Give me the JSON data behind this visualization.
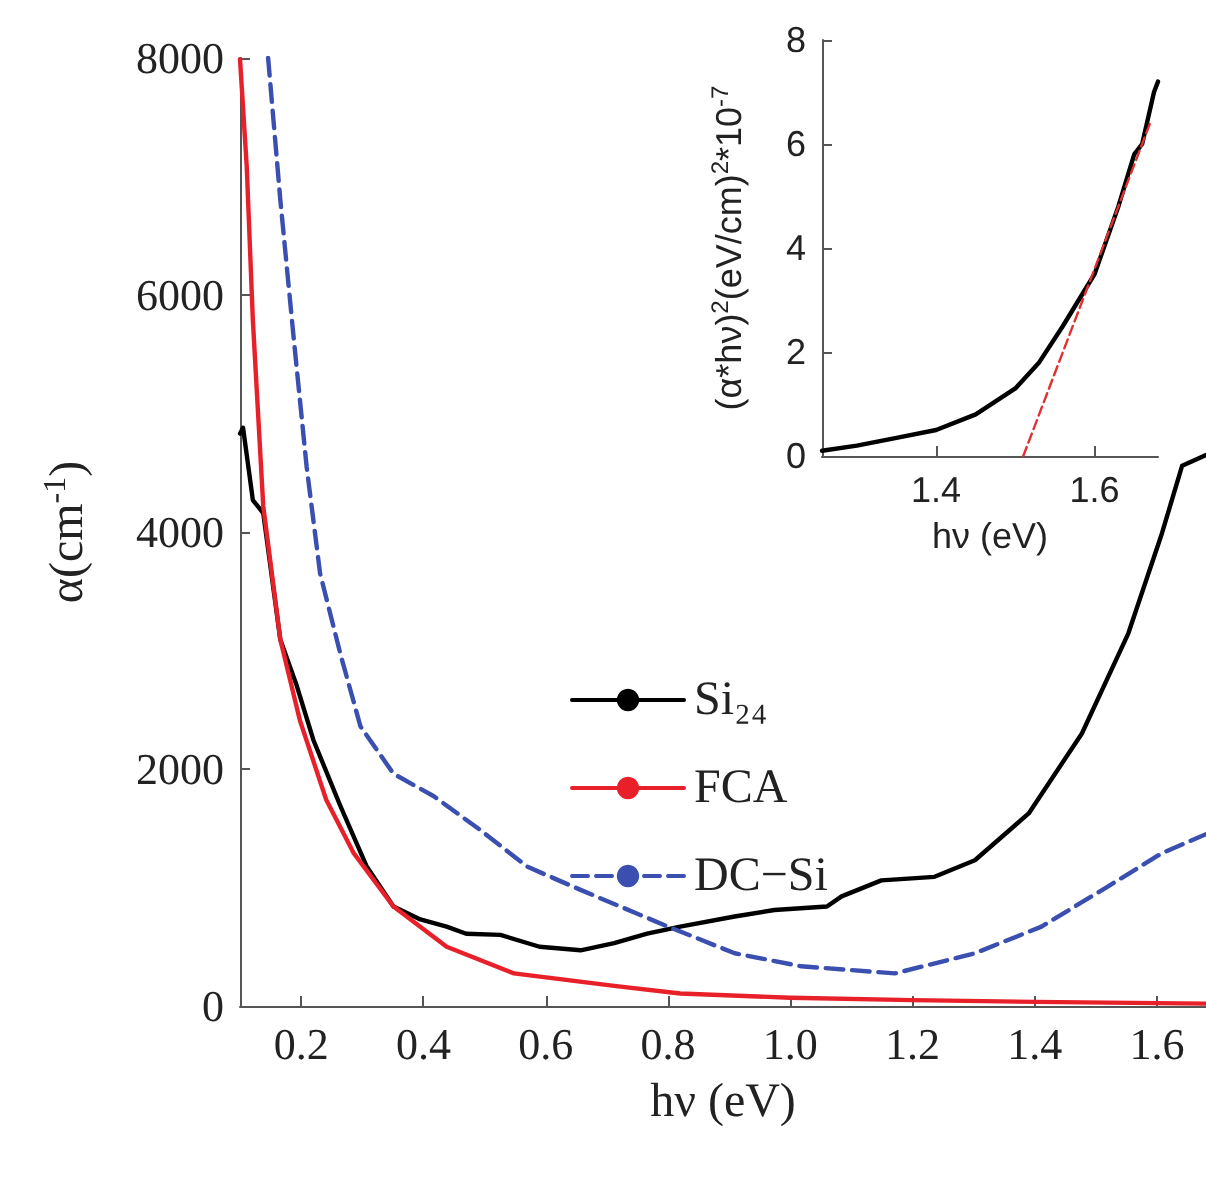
{
  "chart_data": [
    {
      "type": "line",
      "xlabel": "hν (eV)",
      "ylabel": "α(cm$^{-1}$)",
      "xlim": [
        0.1,
        1.68
      ],
      "xticks": [
        0.2,
        0.4,
        0.6,
        0.8,
        {
          "value": 1,
          "label": "1.0"
        },
        1.2,
        1.4,
        1.6
      ],
      "ylim": [
        0,
        8000
      ],
      "yticks": [
        0,
        2000,
        4000,
        6000,
        8000
      ],
      "grid": false,
      "legend": "right",
      "series": [
        {
          "name": "Si₂₄",
          "color": "#000000",
          "x": [
            0.1,
            0.105,
            0.121,
            0.138,
            0.166,
            0.193,
            0.22,
            0.264,
            0.307,
            0.351,
            0.395,
            0.438,
            0.47,
            0.526,
            0.59,
            0.657,
            0.712,
            0.766,
            0.82,
            0.909,
            0.974,
            1.06,
            1.084,
            1.149,
            1.236,
            1.302,
            1.39,
            1.477,
            1.553,
            1.608,
            1.641,
            1.68
          ],
          "values": [
            4830,
            4880,
            4270,
            4160,
            3090,
            2700,
            2245,
            1690,
            1180,
            840,
            730,
            670,
            610,
            600,
            500,
            470,
            530,
            610,
            670,
            755,
            810,
            840,
            925,
            1060,
            1090,
            1230,
            1625,
            2300,
            3145,
            3990,
            4560,
            4650
          ]
        },
        {
          "name": "FCA",
          "color": "#e8202a",
          "x": [
            0.1,
            0.111,
            0.121,
            0.138,
            0.166,
            0.198,
            0.241,
            0.286,
            0.351,
            0.438,
            0.548,
            0.712,
            0.82,
            1.0,
            1.2,
            1.4,
            1.68
          ],
          "values": [
            7990,
            7085,
            5790,
            4220,
            3090,
            2410,
            1740,
            1290,
            840,
            500,
            275,
            170,
            105,
            70,
            50,
            35,
            20
          ]
        },
        {
          "name": "DC−Si",
          "color": "#3a4fb0",
          "line_style": "dashed",
          "x": [
            0.146,
            0.166,
            0.187,
            0.209,
            0.231,
            0.264,
            0.297,
            0.351,
            0.417,
            0.493,
            0.57,
            0.657,
            0.8,
            0.909,
            1.018,
            1.171,
            1.302,
            1.411,
            1.52,
            1.608,
            1.68
          ],
          "values": [
            8000,
            6800,
            5680,
            4550,
            3650,
            2975,
            2360,
            1960,
            1770,
            1485,
            1175,
            980,
            670,
            445,
            335,
            275,
            445,
            670,
            1010,
            1290,
            1450
          ]
        }
      ]
    },
    {
      "type": "line",
      "xlabel": "hν (eV)",
      "ylabel": "(α*hν)$^{2}$(eV/cm)$^{2}$*10$^{-7}$",
      "xlim": [
        1.256,
        1.68
      ],
      "xticks": [
        1.4,
        1.6
      ],
      "ylim": [
        0,
        8
      ],
      "yticks": [
        0,
        2,
        4,
        6,
        8
      ],
      "grid": false,
      "series": [
        {
          "color": "#000000",
          "x": [
            1.256,
            1.3,
            1.35,
            1.4,
            1.45,
            1.5,
            1.53,
            1.56,
            1.6,
            1.63,
            1.65,
            1.66,
            1.675,
            1.68
          ],
          "values": [
            0.1,
            0.2,
            0.35,
            0.5,
            0.8,
            1.3,
            1.8,
            2.5,
            3.5,
            4.8,
            5.8,
            6.0,
            7.0,
            7.2
          ]
        },
        {
          "color": "#e03030",
          "line_style": "dashed",
          "x": [
            1.51,
            1.67
          ],
          "values": [
            0,
            6.4
          ]
        }
      ]
    }
  ]
}
